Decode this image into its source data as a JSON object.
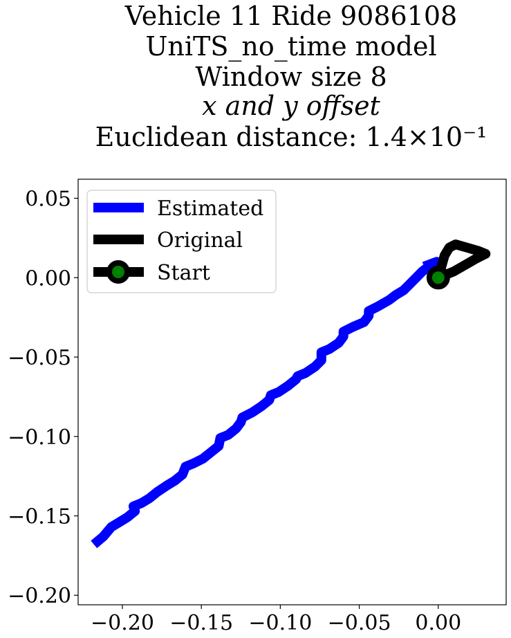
{
  "chart_data": {
    "type": "line",
    "title_lines": [
      "Vehicle 11 Ride 9086108",
      "UniTS_no_time model",
      "Window size 8",
      "x and y offset",
      "Euclidean distance: 1.4×10⁻¹"
    ],
    "xlim": [
      -0.228,
      0.043
    ],
    "ylim": [
      -0.206,
      0.062
    ],
    "x_ticks": [
      -0.2,
      -0.15,
      -0.1,
      -0.05,
      0.0
    ],
    "x_tick_labels": [
      "−0.20",
      "−0.15",
      "−0.10",
      "−0.05",
      "0.00"
    ],
    "y_ticks": [
      0.05,
      0.0,
      -0.05,
      -0.1,
      -0.15,
      -0.2
    ],
    "y_tick_labels": [
      "0.05",
      "0.00",
      "−0.05",
      "−0.10",
      "−0.15",
      "−0.20"
    ],
    "grid": false,
    "legend_position": "top-left",
    "series": [
      {
        "name": "Estimated",
        "color": "#0000ff",
        "points": [
          [
            -0.218,
            -0.168
          ],
          [
            -0.212,
            -0.163
          ],
          [
            -0.207,
            -0.157
          ],
          [
            -0.202,
            -0.154
          ],
          [
            -0.197,
            -0.151
          ],
          [
            -0.192,
            -0.147
          ],
          [
            -0.193,
            -0.144
          ],
          [
            -0.188,
            -0.142
          ],
          [
            -0.183,
            -0.139
          ],
          [
            -0.178,
            -0.135
          ],
          [
            -0.172,
            -0.131
          ],
          [
            -0.167,
            -0.128
          ],
          [
            -0.162,
            -0.124
          ],
          [
            -0.16,
            -0.119
          ],
          [
            -0.155,
            -0.117
          ],
          [
            -0.149,
            -0.114
          ],
          [
            -0.144,
            -0.11
          ],
          [
            -0.139,
            -0.106
          ],
          [
            -0.138,
            -0.101
          ],
          [
            -0.133,
            -0.099
          ],
          [
            -0.128,
            -0.095
          ],
          [
            -0.125,
            -0.091
          ],
          [
            -0.124,
            -0.088
          ],
          [
            -0.118,
            -0.085
          ],
          [
            -0.112,
            -0.081
          ],
          [
            -0.107,
            -0.077
          ],
          [
            -0.106,
            -0.074
          ],
          [
            -0.101,
            -0.072
          ],
          [
            -0.095,
            -0.068
          ],
          [
            -0.09,
            -0.064
          ],
          [
            -0.089,
            -0.062
          ],
          [
            -0.084,
            -0.06
          ],
          [
            -0.078,
            -0.056
          ],
          [
            -0.074,
            -0.052
          ],
          [
            -0.074,
            -0.047
          ],
          [
            -0.069,
            -0.045
          ],
          [
            -0.063,
            -0.041
          ],
          [
            -0.06,
            -0.037
          ],
          [
            -0.06,
            -0.034
          ],
          [
            -0.054,
            -0.031
          ],
          [
            -0.047,
            -0.028
          ],
          [
            -0.044,
            -0.024
          ],
          [
            -0.044,
            -0.021
          ],
          [
            -0.038,
            -0.018
          ],
          [
            -0.031,
            -0.014
          ],
          [
            -0.027,
            -0.011
          ],
          [
            -0.022,
            -0.008
          ],
          [
            -0.018,
            -0.004
          ],
          [
            -0.014,
            0.0
          ],
          [
            -0.01,
            0.004
          ],
          [
            -0.006,
            0.007
          ],
          [
            -0.003,
            0.009
          ],
          [
            -0.001,
            0.01
          ],
          [
            -0.009,
            0.007
          ]
        ]
      },
      {
        "name": "Original",
        "color": "#000000",
        "points": [
          [
            0.0,
            0.0
          ],
          [
            0.002,
            0.007
          ],
          [
            0.004,
            0.014
          ],
          [
            0.007,
            0.019
          ],
          [
            0.011,
            0.021
          ],
          [
            0.018,
            0.019
          ],
          [
            0.025,
            0.017
          ],
          [
            0.03,
            0.015
          ],
          [
            0.024,
            0.012
          ],
          [
            0.017,
            0.008
          ],
          [
            0.01,
            0.004
          ],
          [
            0.005,
            0.002
          ],
          [
            0.0,
            0.0
          ]
        ]
      },
      {
        "name": "Start",
        "color": "#000000",
        "marker_color": "#008000",
        "points": [
          [
            0.0,
            0.0
          ]
        ]
      }
    ]
  }
}
